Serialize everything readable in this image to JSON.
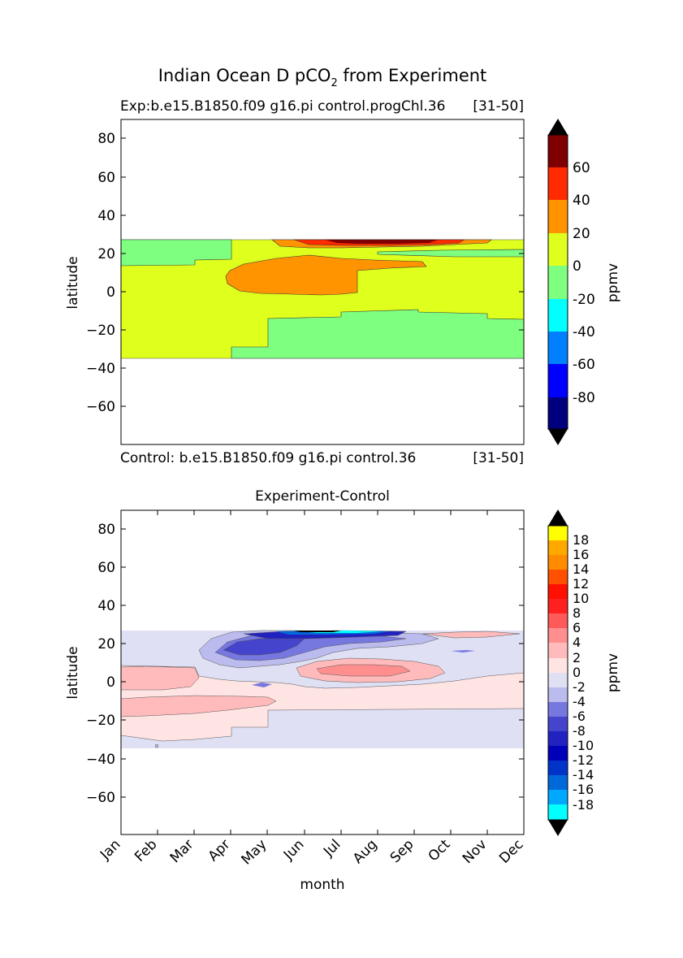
{
  "figure": {
    "title_main": "Indian Ocean D pCO",
    "title_sub": "2",
    "title_rest": " from Experiment"
  },
  "top_panel": {
    "title_left": "Exp:b.e15.B1850.f09 g16.pi control.progChl.36",
    "title_right": "[31-50]",
    "footer_left": "Control: b.e15.B1850.f09 g16.pi control.36",
    "footer_right": "[31-50]",
    "ylabel": "latitude",
    "yticks": [
      "80",
      "60",
      "40",
      "20",
      "0",
      "−20",
      "−40",
      "−60"
    ],
    "colorbar_label": "ppmv",
    "colorbar_ticks": [
      "60",
      "40",
      "20",
      "0",
      "-20",
      "-40",
      "-60",
      "-80"
    ]
  },
  "bottom_panel": {
    "title": "Experiment-Control",
    "ylabel": "latitude",
    "xlabel": "month",
    "yticks": [
      "80",
      "60",
      "40",
      "20",
      "0",
      "−20",
      "−40",
      "−60"
    ],
    "xticks": [
      "Jan",
      "Feb",
      "Mar",
      "Apr",
      "May",
      "Jun",
      "Jul",
      "Aug",
      "Sep",
      "Oct",
      "Nov",
      "Dec"
    ],
    "colorbar_label": "ppmv",
    "colorbar_ticks": [
      "18",
      "16",
      "14",
      "12",
      "10",
      "8",
      "6",
      "4",
      "2",
      "0",
      "-2",
      "-4",
      "-6",
      "-8",
      "-10",
      "-12",
      "-14",
      "-16",
      "-18"
    ]
  },
  "chart_data": [
    {
      "type": "heatmap",
      "title": "Exp:b.e15.B1850.f09 g16.pi control.progChl.36 [31-50]",
      "xlabel": "",
      "ylabel": "latitude",
      "x": [
        "Jan",
        "Feb",
        "Mar",
        "Apr",
        "May",
        "Jun",
        "Jul",
        "Aug",
        "Sep",
        "Oct",
        "Nov",
        "Dec"
      ],
      "ylim": [
        -80,
        90
      ],
      "data_lat_range": [
        -34,
        27
      ],
      "colorbar": {
        "label": "ppmv",
        "levels": [
          -100,
          -80,
          -60,
          -40,
          -20,
          0,
          20,
          40,
          60,
          80
        ],
        "colors": [
          "#00007f",
          "#0000ff",
          "#007fff",
          "#00ffff",
          "#7fff7f",
          "#dfff1c",
          "#ff9400",
          "#ff2a00",
          "#7f0000"
        ],
        "extend": "both"
      }
    },
    {
      "type": "heatmap",
      "title": "Experiment-Control",
      "xlabel": "month",
      "ylabel": "latitude",
      "x": [
        "Jan",
        "Feb",
        "Mar",
        "Apr",
        "May",
        "Jun",
        "Jul",
        "Aug",
        "Sep",
        "Oct",
        "Nov",
        "Dec"
      ],
      "ylim": [
        -80,
        90
      ],
      "data_lat_range": [
        -34,
        27
      ],
      "colorbar": {
        "label": "ppmv",
        "levels": [
          -20,
          -18,
          -16,
          -14,
          -12,
          -10,
          -8,
          -6,
          -4,
          -2,
          0,
          2,
          4,
          6,
          8,
          10,
          12,
          14,
          16,
          18,
          20
        ],
        "colors": [
          "#00ffff",
          "#00d4ff",
          "#00a8ff",
          "#0068d8",
          "#0034c8",
          "#0000b8",
          "#2222c0",
          "#4444cc",
          "#7777e0",
          "#bbbbee",
          "#dfe0f4",
          "#ffe4e4",
          "#ffbbbb",
          "#ff8f8f",
          "#ff5a5a",
          "#ff2020",
          "#ff1000",
          "#ff5000",
          "#ff8c00",
          "#ffa800",
          "#ffff00"
        ],
        "extend": "both"
      }
    }
  ]
}
